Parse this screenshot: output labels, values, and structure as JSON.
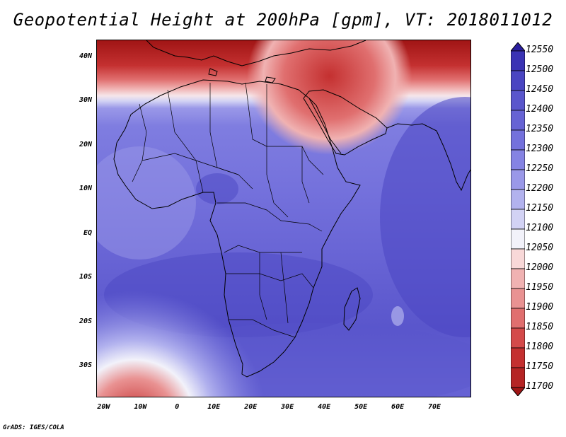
{
  "title": "Geopotential Height at 200hPa [gpm], VT: 2018011012",
  "credit": "GrADS: IGES/COLA",
  "map": {
    "lat_labels": [
      "40N",
      "30N",
      "20N",
      "10N",
      "EQ",
      "10S",
      "20S",
      "30S"
    ],
    "lon_labels": [
      "20W",
      "10W",
      "0",
      "10E",
      "20E",
      "30E",
      "40E",
      "50E",
      "60E",
      "70E"
    ],
    "lat_values": [
      40,
      30,
      20,
      10,
      0,
      -10,
      -20,
      -30
    ],
    "lon_values": [
      -20,
      -10,
      0,
      10,
      20,
      30,
      40,
      50,
      60,
      70
    ],
    "extent": {
      "lon_min": -22,
      "lon_max": 80,
      "lat_min": -37,
      "lat_max": 44
    },
    "field": "Geopotential height, 200 hPa, gpm",
    "features": [
      "continent outlines (Africa, Europe, Middle East, Arabia, South Asia)",
      "country borders"
    ]
  },
  "colorbar": {
    "levels": [
      12550,
      12500,
      12450,
      12400,
      12350,
      12300,
      12250,
      12200,
      12150,
      12100,
      12050,
      12000,
      11950,
      11900,
      11850,
      11800,
      11750,
      11700
    ],
    "colors": [
      "#2a1e9e",
      "#3a33b4",
      "#4a45c2",
      "#5a56cc",
      "#6763d4",
      "#7471dc",
      "#8583e3",
      "#9a98e8",
      "#b2b2ee",
      "#d2d2f4",
      "#f2f2fa",
      "#f8d8d8",
      "#f0b2b2",
      "#e99292",
      "#e06f6f",
      "#d44a4a",
      "#c43030",
      "#b52424",
      "#a01515"
    ]
  }
}
